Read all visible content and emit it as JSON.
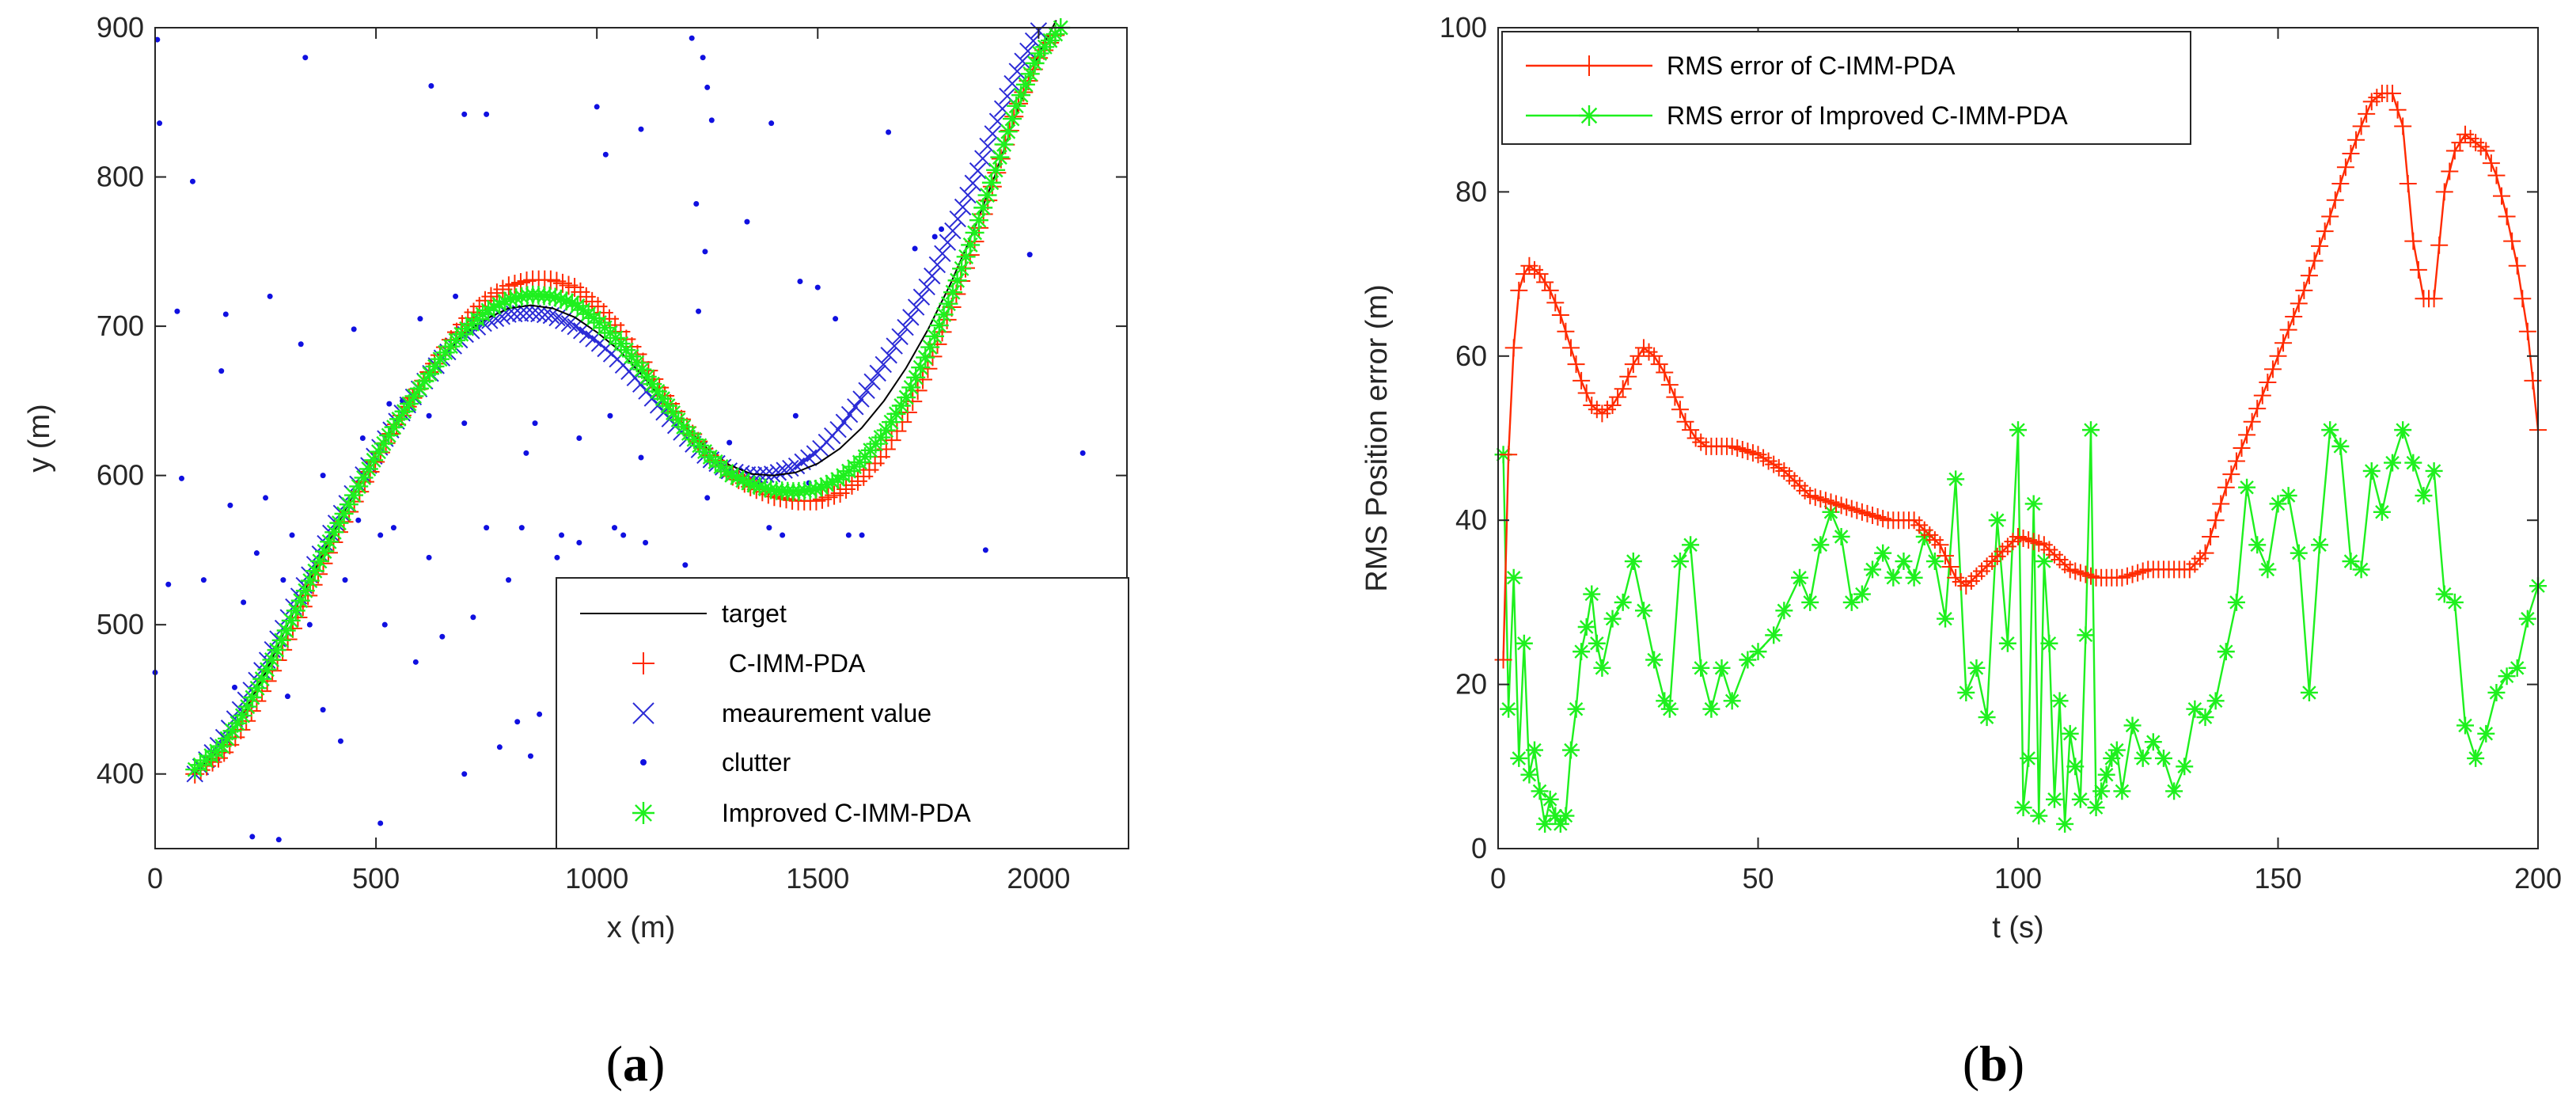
{
  "colors": {
    "target": "#000000",
    "cimmpda": "#ff2a00",
    "measurement": "#2b2bd6",
    "clutter": "#1010e0",
    "improved": "#1ef01e",
    "axis": "#262626"
  },
  "chart_data": [
    {
      "type": "scatter",
      "panel_label": "a",
      "xlabel": "x (m)",
      "ylabel": "y (m)",
      "xlim": [
        0,
        2200
      ],
      "ylim": [
        350,
        900
      ],
      "xticks": [
        0,
        500,
        1000,
        1500,
        2000
      ],
      "yticks": [
        400,
        500,
        600,
        700,
        800,
        900
      ],
      "legend_position": "bottom-right",
      "legend": [
        "target",
        " C-IMM-PDA",
        "meaurement value",
        "clutter",
        "Improved C-IMM-PDA"
      ],
      "target_path": {
        "x": [
          90,
          150,
          200,
          250,
          300,
          350,
          400,
          450,
          500,
          550,
          600,
          650,
          700,
          750,
          800,
          850,
          900,
          950,
          1000,
          1050,
          1100,
          1150,
          1200,
          1250,
          1300,
          1350,
          1400,
          1450,
          1500,
          1550,
          1600,
          1650,
          1700,
          1750,
          1800,
          1850,
          1900,
          1950,
          2000,
          2040
        ],
        "y": [
          400,
          418,
          440,
          468,
          500,
          530,
          560,
          588,
          614,
          638,
          660,
          680,
          695,
          705,
          712,
          714,
          712,
          706,
          696,
          684,
          668,
          650,
          633,
          618,
          607,
          601,
          600,
          602,
          608,
          618,
          632,
          650,
          672,
          698,
          728,
          762,
          800,
          843,
          882,
          905
        ]
      },
      "cimmpda_path": {
        "x": [
          90,
          150,
          200,
          250,
          300,
          350,
          400,
          450,
          500,
          550,
          600,
          650,
          700,
          750,
          800,
          850,
          900,
          950,
          1000,
          1050,
          1100,
          1150,
          1200,
          1250,
          1300,
          1350,
          1400,
          1450,
          1500,
          1550,
          1600,
          1650,
          1700,
          1750,
          1800,
          1850,
          1900,
          1950,
          2000,
          2050
        ],
        "y": [
          400,
          412,
          432,
          460,
          490,
          522,
          553,
          582,
          610,
          636,
          660,
          683,
          703,
          718,
          727,
          731,
          731,
          726,
          714,
          698,
          678,
          655,
          634,
          615,
          601,
          592,
          586,
          583,
          583,
          588,
          598,
          615,
          640,
          672,
          710,
          752,
          798,
          846,
          880,
          900
        ]
      },
      "measurement_path": {
        "x": [
          90,
          150,
          200,
          250,
          300,
          350,
          400,
          450,
          500,
          550,
          600,
          650,
          700,
          750,
          800,
          850,
          900,
          950,
          1000,
          1050,
          1100,
          1150,
          1200,
          1250,
          1300,
          1350,
          1400,
          1450,
          1500,
          1550,
          1600,
          1650,
          1700,
          1750,
          1800,
          1850,
          1900,
          1950,
          2000
        ],
        "y": [
          400,
          422,
          447,
          474,
          504,
          534,
          563,
          590,
          615,
          638,
          659,
          679,
          694,
          703,
          708,
          709,
          707,
          700,
          690,
          677,
          661,
          643,
          626,
          612,
          603,
          600,
          601,
          606,
          616,
          632,
          652,
          675,
          700,
          728,
          760,
          795,
          832,
          870,
          898
        ]
      },
      "improved_path": {
        "x": [
          90,
          150,
          200,
          250,
          300,
          350,
          400,
          450,
          500,
          550,
          600,
          650,
          700,
          750,
          800,
          850,
          900,
          950,
          1000,
          1050,
          1100,
          1150,
          1200,
          1250,
          1300,
          1350,
          1400,
          1450,
          1500,
          1550,
          1600,
          1650,
          1700,
          1750,
          1800,
          1850,
          1900,
          1950,
          2000,
          2050
        ],
        "y": [
          403,
          418,
          440,
          468,
          498,
          529,
          559,
          587,
          613,
          637,
          659,
          680,
          697,
          710,
          718,
          721,
          720,
          715,
          704,
          690,
          672,
          651,
          631,
          614,
          601,
          594,
          590,
          589,
          591,
          598,
          610,
          628,
          652,
          683,
          718,
          758,
          802,
          848,
          882,
          900
        ]
      },
      "clutter": {
        "x": [
          5,
          10,
          85,
          340,
          625,
          700,
          750,
          1215,
          1240,
          1250,
          1260,
          1395,
          1100,
          1000,
          1020,
          1225,
          1245,
          1660,
          1720,
          1765,
          1780,
          50,
          160,
          260,
          150,
          330,
          450,
          600,
          680,
          1230,
          1340,
          1460,
          1500,
          1540,
          1980,
          60,
          170,
          250,
          380,
          470,
          530,
          560,
          620,
          700,
          840,
          860,
          960,
          1030,
          1100,
          1300,
          1370,
          1450,
          1480,
          1570,
          2100,
          110,
          230,
          310,
          400,
          460,
          510,
          540,
          620,
          750,
          800,
          830,
          910,
          920,
          960,
          1040,
          1060,
          1110,
          1200,
          1250,
          1390,
          1420,
          1600,
          1880,
          30,
          200,
          290,
          350,
          430,
          520,
          650,
          720,
          820,
          870,
          1050,
          1160,
          1280,
          1340,
          1510,
          1700,
          0,
          180,
          300,
          380,
          420,
          590,
          700,
          780,
          850,
          220,
          280,
          510
        ],
        "y": [
          892,
          836,
          797,
          880,
          861,
          842,
          842,
          893,
          880,
          860,
          838,
          836,
          832,
          847,
          815,
          782,
          750,
          830,
          752,
          760,
          765,
          710,
          708,
          720,
          670,
          688,
          698,
          705,
          720,
          710,
          770,
          730,
          726,
          705,
          748,
          598,
          580,
          585,
          600,
          625,
          648,
          650,
          640,
          635,
          615,
          635,
          625,
          640,
          612,
          622,
          595,
          640,
          595,
          560,
          615,
          530,
          548,
          560,
          560,
          570,
          560,
          565,
          545,
          565,
          530,
          565,
          545,
          560,
          555,
          565,
          560,
          555,
          540,
          585,
          565,
          560,
          560,
          550,
          527,
          515,
          530,
          500,
          530,
          500,
          492,
          505,
          435,
          440,
          490,
          515,
          475,
          525,
          500,
          520,
          468,
          458,
          452,
          443,
          422,
          475,
          400,
          418,
          412,
          358,
          356,
          367
        ]
      }
    },
    {
      "type": "line",
      "panel_label": "b",
      "xlabel": "t (s)",
      "ylabel": "RMS Position error (m)",
      "xlim": [
        0,
        200
      ],
      "ylim": [
        0,
        100
      ],
      "xticks": [
        0,
        50,
        100,
        150,
        200
      ],
      "yticks": [
        0,
        20,
        40,
        60,
        80,
        100
      ],
      "legend_position": "top-left",
      "series": [
        {
          "name": "RMS error of C-IMM-PDA",
          "x": [
            1,
            2,
            3,
            4,
            5,
            6,
            8,
            10,
            12,
            14,
            16,
            18,
            20,
            22,
            24,
            26,
            28,
            30,
            32,
            34,
            36,
            38,
            40,
            45,
            50,
            55,
            60,
            65,
            70,
            75,
            80,
            85,
            88,
            90,
            95,
            100,
            105,
            110,
            115,
            120,
            125,
            130,
            133,
            136,
            140,
            145,
            150,
            155,
            160,
            163,
            166,
            168,
            170,
            172,
            174,
            176,
            178,
            180,
            182,
            184,
            186,
            188,
            190,
            192,
            194,
            196,
            198,
            200
          ],
          "y": [
            23,
            48,
            61,
            68,
            70,
            71,
            70,
            68,
            65,
            61,
            57,
            54,
            53,
            54,
            56,
            59,
            61,
            60,
            58,
            55,
            52,
            50,
            49,
            49,
            48,
            46,
            43,
            42,
            41,
            40,
            40,
            37,
            33,
            32,
            35,
            38,
            37,
            34,
            33,
            33,
            34,
            34,
            34,
            36,
            44,
            52,
            60,
            68,
            77,
            83,
            88,
            91,
            92,
            92,
            88,
            74,
            67,
            67,
            80,
            85,
            87,
            86,
            85,
            82,
            77,
            71,
            63,
            51
          ]
        },
        {
          "name": "RMS error of Improved C-IMM-PDA",
          "x": [
            1,
            2,
            3,
            4,
            5,
            6,
            7,
            8,
            9,
            10,
            11,
            12,
            13,
            14,
            15,
            16,
            17,
            18,
            19,
            20,
            22,
            24,
            26,
            28,
            30,
            32,
            33,
            35,
            37,
            39,
            41,
            43,
            45,
            48,
            50,
            53,
            55,
            58,
            60,
            62,
            64,
            66,
            68,
            70,
            72,
            74,
            76,
            78,
            80,
            82,
            84,
            86,
            88,
            90,
            92,
            94,
            96,
            98,
            100,
            101,
            102,
            103,
            104,
            105,
            106,
            107,
            108,
            109,
            110,
            111,
            112,
            113,
            114,
            115,
            116,
            117,
            118,
            119,
            120,
            122,
            124,
            126,
            128,
            130,
            132,
            134,
            136,
            138,
            140,
            142,
            144,
            146,
            148,
            150,
            152,
            154,
            156,
            158,
            160,
            162,
            164,
            166,
            168,
            170,
            172,
            174,
            176,
            178,
            180,
            182,
            184,
            186,
            188,
            190,
            192,
            194,
            196,
            198,
            200
          ],
          "y": [
            48,
            17,
            33,
            11,
            25,
            9,
            12,
            7,
            3,
            6,
            4,
            3,
            4,
            12,
            17,
            24,
            27,
            31,
            25,
            22,
            28,
            30,
            35,
            29,
            23,
            18,
            17,
            35,
            37,
            22,
            17,
            22,
            18,
            23,
            24,
            26,
            29,
            33,
            30,
            37,
            41,
            38,
            30,
            31,
            34,
            36,
            33,
            35,
            33,
            38,
            35,
            28,
            45,
            19,
            22,
            16,
            40,
            25,
            51,
            5,
            11,
            42,
            4,
            35,
            25,
            6,
            18,
            3,
            14,
            10,
            6,
            26,
            51,
            5,
            7,
            9,
            11,
            12,
            7,
            15,
            11,
            13,
            11,
            7,
            10,
            17,
            16,
            18,
            24,
            30,
            44,
            37,
            34,
            42,
            43,
            36,
            19,
            37,
            51,
            49,
            35,
            34,
            46,
            41,
            47,
            51,
            47,
            43,
            46,
            31,
            30,
            15,
            11,
            14,
            19,
            21,
            22,
            28,
            32
          ]
        }
      ]
    }
  ]
}
